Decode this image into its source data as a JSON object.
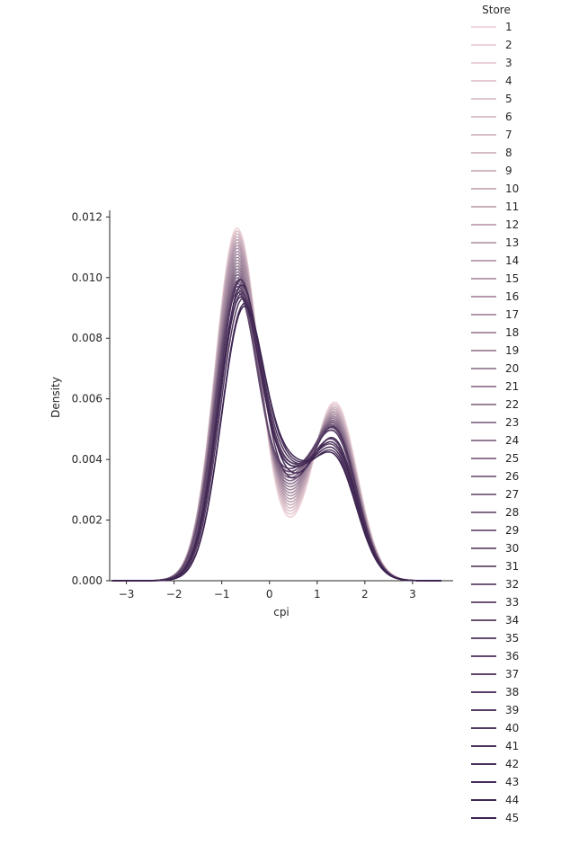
{
  "chart_data": {
    "type": "line",
    "kind": "kde",
    "xlabel": "cpi",
    "ylabel": "Density",
    "xlim": [
      -3.35,
      3.85
    ],
    "ylim": [
      0,
      0.0121
    ],
    "xticks": [
      -3,
      -2,
      -1,
      0,
      1,
      2,
      3
    ],
    "yticks": [
      0.0,
      0.002,
      0.004,
      0.006,
      0.008,
      0.01,
      0.012
    ],
    "ytick_labels": [
      "0.000",
      "0.002",
      "0.004",
      "0.006",
      "0.008",
      "0.010",
      "0.012"
    ],
    "grid": false,
    "legend": {
      "title": "Store",
      "placement": "right",
      "entries": [
        "1",
        "2",
        "3",
        "4",
        "5",
        "6",
        "7",
        "8",
        "9",
        "10",
        "11",
        "12",
        "13",
        "14",
        "15",
        "16",
        "17",
        "18",
        "19",
        "20",
        "21",
        "22",
        "23",
        "24",
        "25",
        "26",
        "27",
        "28",
        "29",
        "30",
        "31",
        "32",
        "33",
        "34",
        "35",
        "36",
        "37",
        "38",
        "39",
        "40",
        "41",
        "42",
        "43",
        "44",
        "45"
      ]
    },
    "palette": {
      "start": "#f2d8dc",
      "end": "#3c2350"
    },
    "series_model": {
      "description": "Each store's curve is a bimodal density; parameters per series (45 entries) in store order",
      "mode1_mean": [
        -0.68,
        -0.68,
        -0.68,
        -0.68,
        -0.68,
        -0.68,
        -0.68,
        -0.68,
        -0.68,
        -0.68,
        -0.68,
        -0.68,
        -0.68,
        -0.68,
        -0.68,
        -0.68,
        -0.68,
        -0.68,
        -0.68,
        -0.68,
        -0.68,
        -0.68,
        -0.68,
        -0.68,
        -0.68,
        -0.68,
        -0.68,
        -0.68,
        -0.68,
        -0.68,
        -0.68,
        -0.68,
        -0.68,
        -0.68,
        -0.68,
        -0.68,
        -0.64,
        -0.62,
        -0.6,
        -0.58,
        -0.62,
        -0.55,
        -0.6,
        -0.62,
        -0.55
      ],
      "mode1_peak": [
        0.0116,
        0.0116,
        0.0115,
        0.0115,
        0.0115,
        0.0114,
        0.0114,
        0.0114,
        0.0113,
        0.0113,
        0.0112,
        0.0112,
        0.0111,
        0.0111,
        0.011,
        0.011,
        0.0109,
        0.0108,
        0.0107,
        0.0106,
        0.0105,
        0.0104,
        0.0103,
        0.0102,
        0.0102,
        0.0101,
        0.01,
        0.01,
        0.0099,
        0.0098,
        0.0097,
        0.0097,
        0.0096,
        0.0096,
        0.0095,
        0.0094,
        0.0098,
        0.0094,
        0.0093,
        0.0091,
        0.0098,
        0.0089,
        0.0096,
        0.0092,
        0.0088
      ],
      "mode2_peak": [
        0.0058,
        0.0058,
        0.0057,
        0.0057,
        0.0057,
        0.0056,
        0.0056,
        0.0056,
        0.0055,
        0.0055,
        0.0055,
        0.0054,
        0.0054,
        0.0054,
        0.0053,
        0.0053,
        0.0053,
        0.0052,
        0.0052,
        0.0052,
        0.0051,
        0.0051,
        0.0051,
        0.005,
        0.005,
        0.005,
        0.0049,
        0.0049,
        0.0049,
        0.0048,
        0.0048,
        0.0048,
        0.0047,
        0.0047,
        0.0047,
        0.0046,
        0.0041,
        0.0046,
        0.0043,
        0.0039,
        0.0048,
        0.004,
        0.0044,
        0.0042,
        0.0038
      ],
      "trough": [
        0.0021,
        0.0021,
        0.0022,
        0.0022,
        0.0023,
        0.0023,
        0.0024,
        0.0024,
        0.0025,
        0.0025,
        0.0026,
        0.0026,
        0.0027,
        0.0027,
        0.0028,
        0.0028,
        0.0029,
        0.0029,
        0.003,
        0.003,
        0.0031,
        0.0031,
        0.0032,
        0.0032,
        0.0033,
        0.0033,
        0.0034,
        0.0034,
        0.0035,
        0.0035,
        0.0036,
        0.0036,
        0.0036,
        0.0037,
        0.0037,
        0.0037,
        0.0039,
        0.0038,
        0.0039,
        0.004,
        0.0034,
        0.0041,
        0.0036,
        0.0038,
        0.0042
      ]
    }
  }
}
